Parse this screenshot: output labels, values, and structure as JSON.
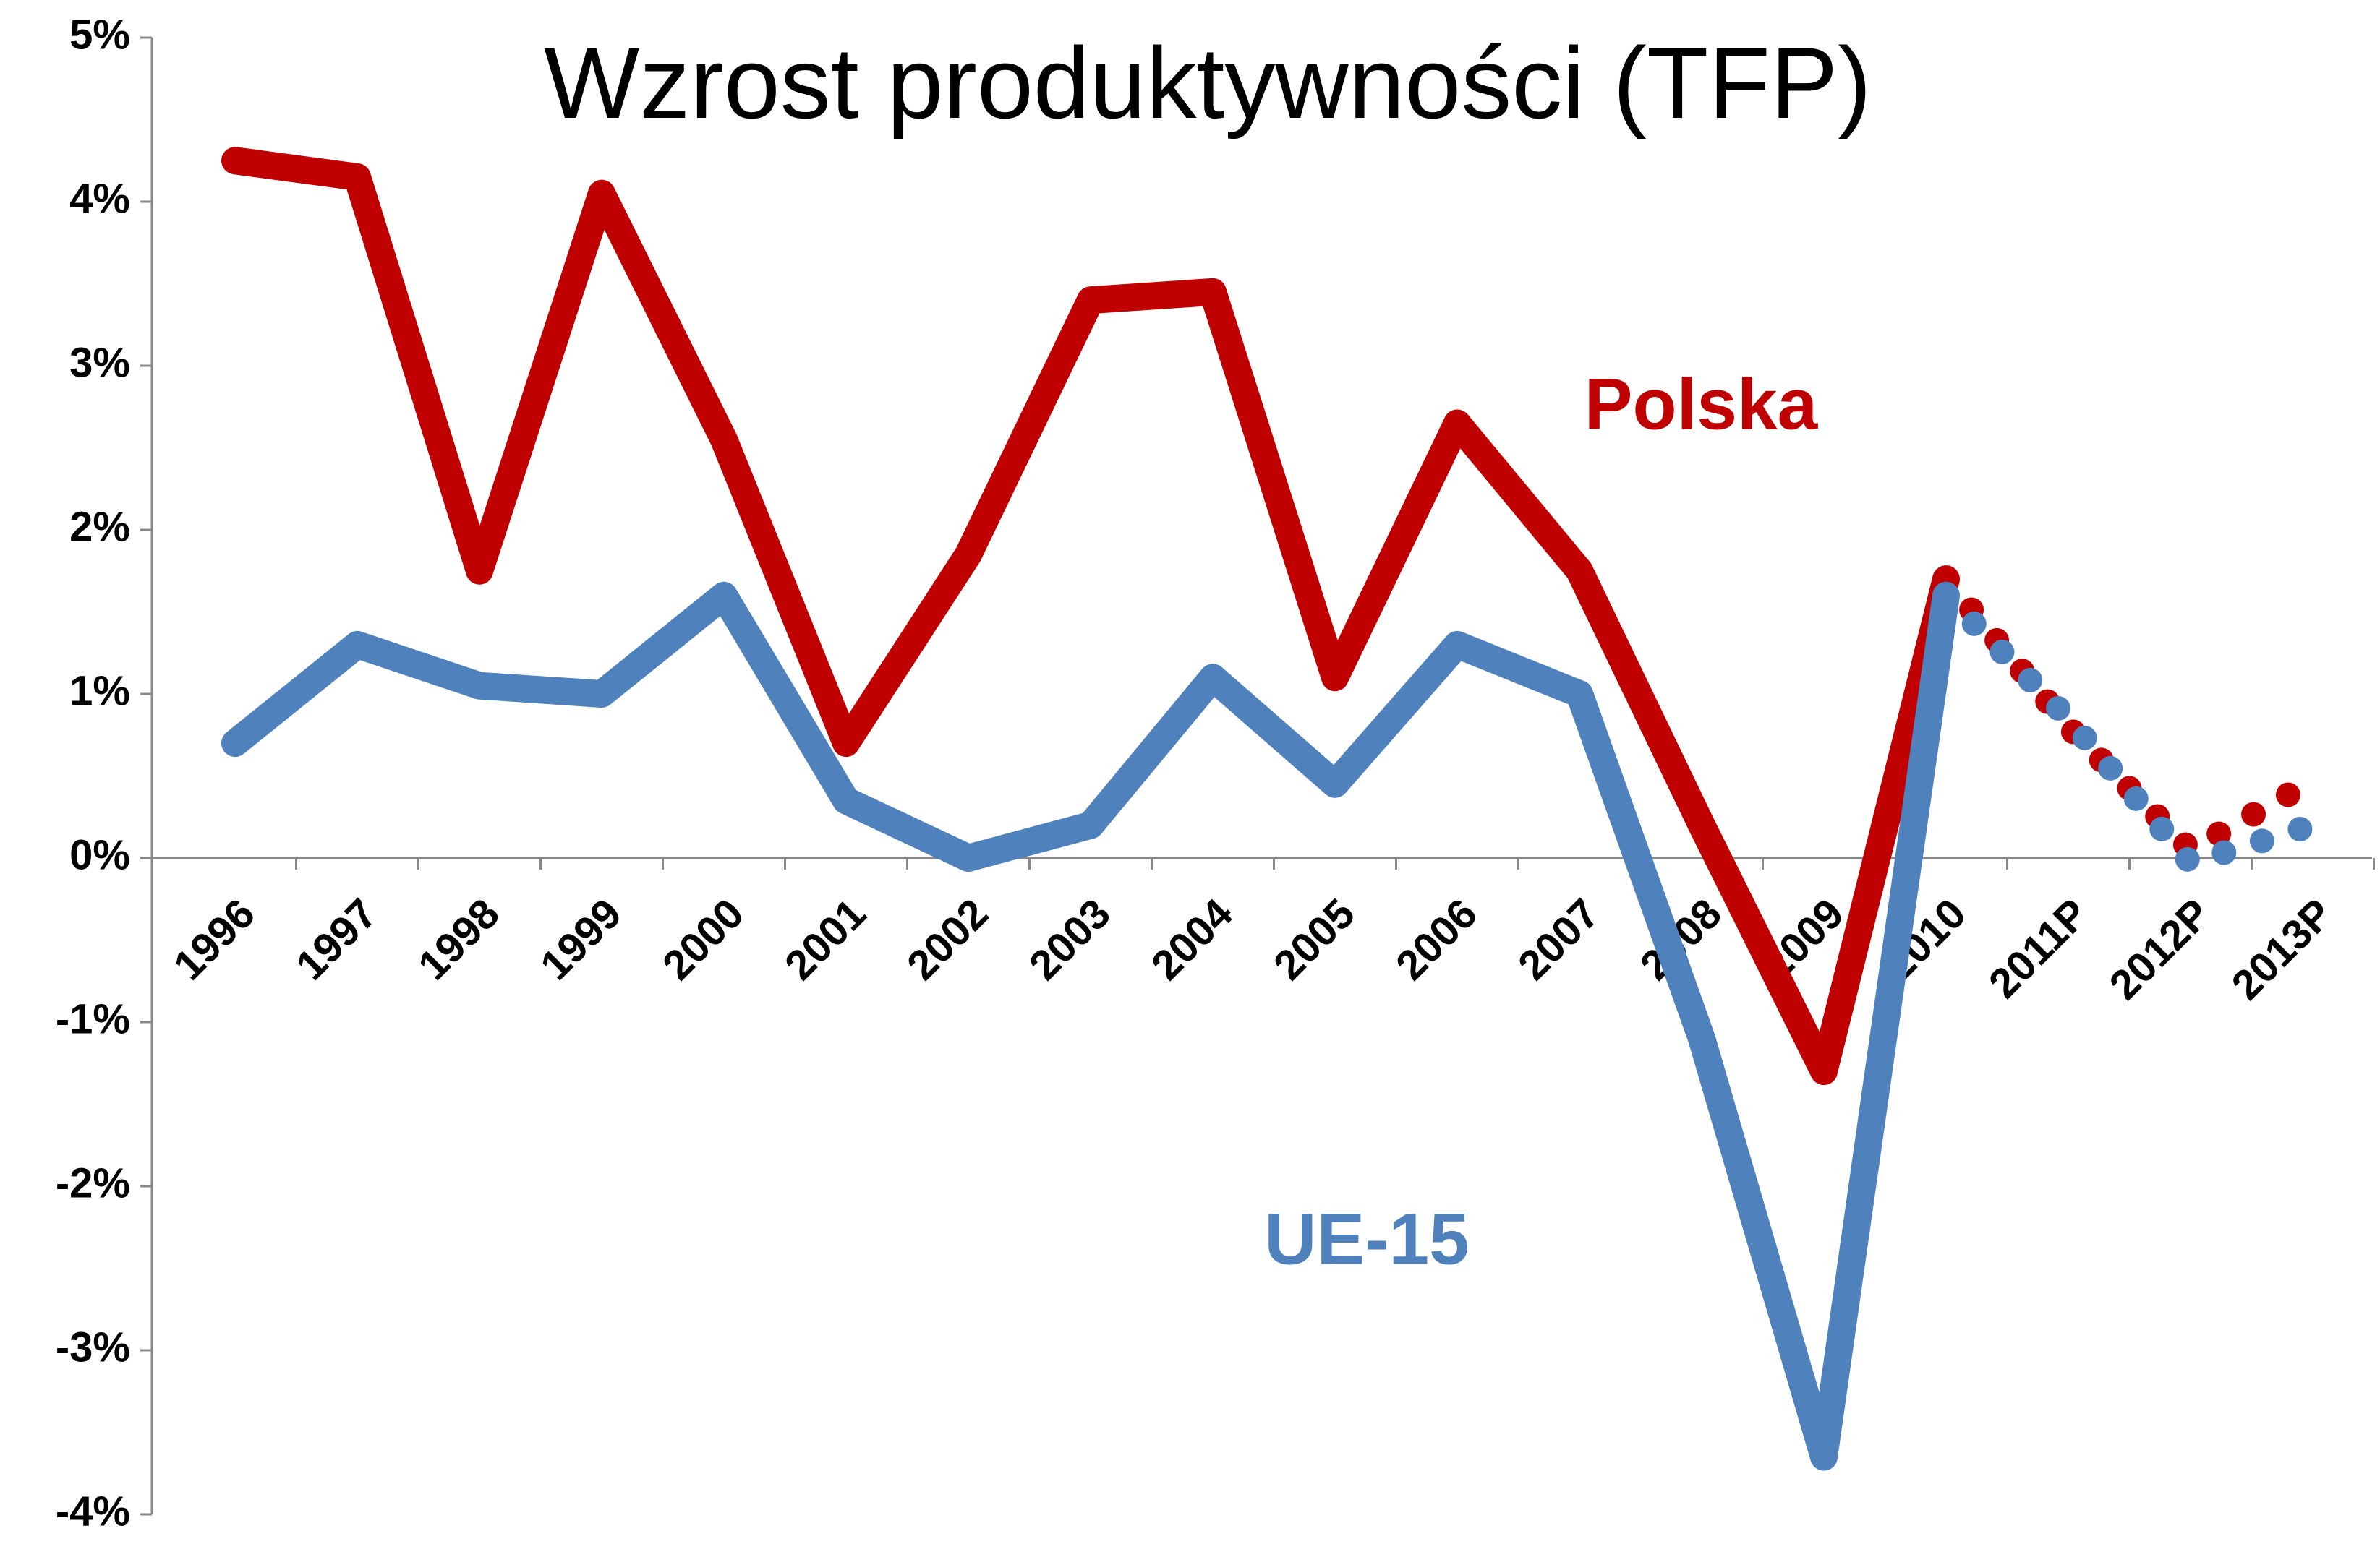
{
  "chart_data": {
    "type": "line",
    "title": "Wzrost produktywności (TFP)",
    "categories": [
      "1996",
      "1997",
      "1998",
      "1999",
      "2000",
      "2001",
      "2002",
      "2003",
      "2004",
      "2005",
      "2006",
      "2007",
      "2008",
      "2009",
      "2010",
      "2011P",
      "2012P",
      "2013P"
    ],
    "series": [
      {
        "name": "Polska",
        "color": "#c00000",
        "values": [
          4.25,
          4.15,
          1.75,
          4.05,
          2.55,
          0.7,
          1.85,
          3.4,
          3.45,
          1.1,
          2.65,
          1.75,
          0.2,
          -1.3,
          1.7,
          0.8,
          0.05,
          0.47
        ]
      },
      {
        "name": "UE-15",
        "color": "#4f81bd",
        "values": [
          0.7,
          1.3,
          1.05,
          1.0,
          1.6,
          0.35,
          0.0,
          0.2,
          1.1,
          0.45,
          1.3,
          1.0,
          -1.1,
          -3.65,
          1.6,
          0.85,
          -0.03,
          0.2
        ]
      }
    ],
    "dotted_from_index": 14,
    "ylim": [
      -4,
      5
    ],
    "yticks": [
      {
        "value": -4,
        "label": "-4%"
      },
      {
        "value": -3,
        "label": "-3%"
      },
      {
        "value": -2,
        "label": "-2%"
      },
      {
        "value": -1,
        "label": "-1%"
      },
      {
        "value": 0,
        "label": "0%"
      },
      {
        "value": 1,
        "label": "1%"
      },
      {
        "value": 2,
        "label": "2%"
      },
      {
        "value": 3,
        "label": "3%"
      },
      {
        "value": 4,
        "label": "4%"
      },
      {
        "value": 5,
        "label": "5%"
      }
    ],
    "grid": false
  }
}
